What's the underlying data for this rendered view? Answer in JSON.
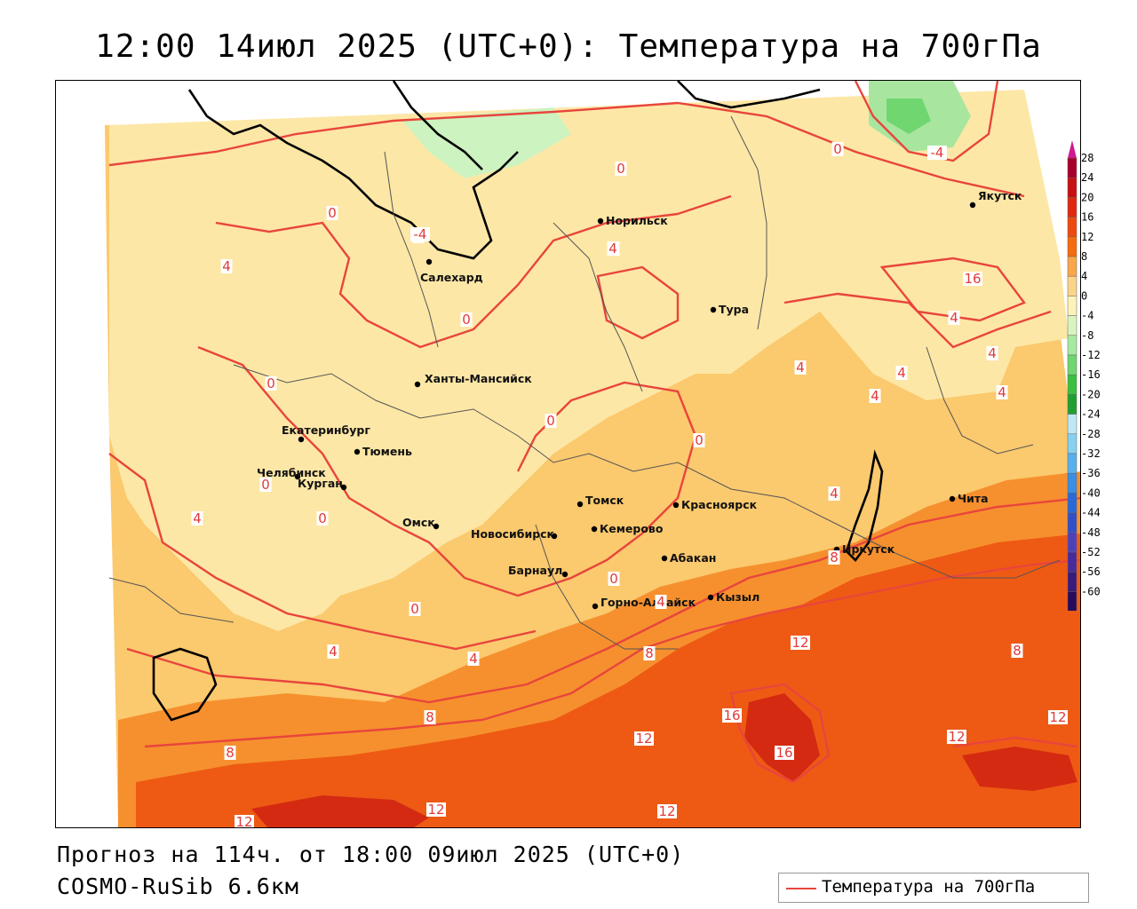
{
  "title": "12:00 14июл 2025 (UTC+0): Температура на 700гПа",
  "forecast": "Прогноз на 114ч. от 18:00 09июл 2025 (UTC+0)",
  "model": "COSMO-RuSib 6.6км",
  "legend": {
    "label": "Температура на 700гПа",
    "line_color": "#e8453c"
  },
  "colorbar": {
    "levels": [
      28,
      24,
      20,
      16,
      12,
      8,
      4,
      0,
      -4,
      -8,
      -12,
      -16,
      -20,
      -24,
      -28,
      -32,
      -36,
      -40,
      -44,
      -48,
      -52,
      -56,
      -60
    ],
    "labels": [
      "28",
      "24",
      "20",
      "16",
      "12",
      "8",
      "4",
      "0",
      "-4",
      "-8",
      "-12",
      "-16",
      "-20",
      "-24",
      "-28",
      "-32",
      "-36",
      "-40",
      "-44",
      "-48",
      "-52",
      "-56",
      "-60"
    ],
    "colors": [
      "#a8002a",
      "#c81010",
      "#e02810",
      "#ee4a10",
      "#f56c10",
      "#f9a64a",
      "#fbd48a",
      "#fdf3b8",
      "#d8f5c0",
      "#a6eaa0",
      "#6fd670",
      "#3cc040",
      "#20a030",
      "#bfe8f5",
      "#88d0f0",
      "#58b0ec",
      "#3a8ee4",
      "#2a6ad8",
      "#3050c8",
      "#5040b8",
      "#4a2a9a",
      "#3a1a7a",
      "#2a0a5a"
    ],
    "top_arrow_color": "#d01890",
    "bottom_arrow_color": "#9a30c0"
  },
  "cities": [
    {
      "name": "Норильск"
    },
    {
      "name": "Якутск"
    },
    {
      "name": "Салехард"
    },
    {
      "name": "Тура"
    },
    {
      "name": "Ханты-Мансийск"
    },
    {
      "name": "Екатеринбург"
    },
    {
      "name": "Тюмень"
    },
    {
      "name": "Челябинск"
    },
    {
      "name": "Курган"
    },
    {
      "name": "Омск"
    },
    {
      "name": "Томск"
    },
    {
      "name": "Красноярск"
    },
    {
      "name": "Кемерово"
    },
    {
      "name": "Новосибирск"
    },
    {
      "name": "Абакан"
    },
    {
      "name": "Барнаул"
    },
    {
      "name": "Горно-Алтайск"
    },
    {
      "name": "Кызыл"
    },
    {
      "name": "Иркутск"
    },
    {
      "name": "Чита"
    }
  ],
  "isotherm_labels": [
    "0",
    "0",
    "0",
    "0",
    "0",
    "0",
    "0",
    "0",
    "0",
    "0",
    "0",
    "0",
    "-4",
    "-4",
    "4",
    "4",
    "4",
    "4",
    "4",
    "4",
    "4",
    "4",
    "4",
    "4",
    "4",
    "4",
    "4",
    "4",
    "4",
    "4",
    "8",
    "8",
    "8",
    "8",
    "8",
    "12",
    "12",
    "12",
    "12",
    "12",
    "12",
    "12",
    "16",
    "16",
    "16"
  ]
}
